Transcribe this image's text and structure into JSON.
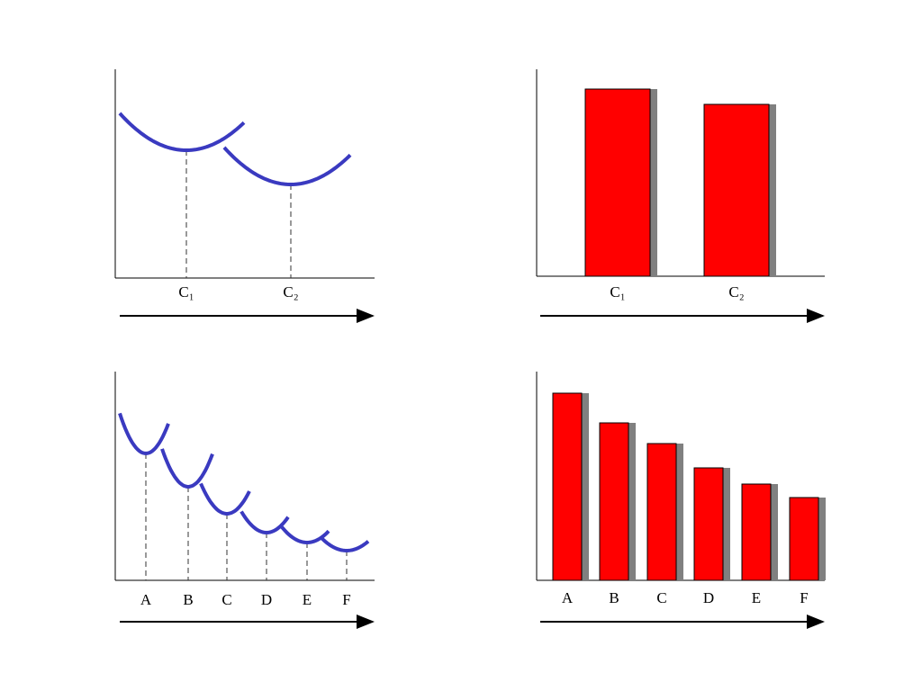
{
  "chart_data": [
    {
      "type": "curves",
      "categories": [
        "C₁",
        "C₂"
      ],
      "values": [
        142,
        104
      ],
      "ylim": [
        0,
        232
      ],
      "color": "#3a3ac0"
    },
    {
      "type": "bar",
      "categories": [
        "C₁",
        "C₂"
      ],
      "values": [
        208,
        191
      ],
      "ylim": [
        0,
        230
      ],
      "color": "#ff0000"
    },
    {
      "type": "curves",
      "categories": [
        "A",
        "B",
        "C",
        "D",
        "E",
        "F"
      ],
      "values": [
        141,
        104,
        74,
        53,
        42,
        33
      ],
      "ylim": [
        0,
        232
      ],
      "color": "#3a3ac0"
    },
    {
      "type": "bar",
      "categories": [
        "A",
        "B",
        "C",
        "D",
        "E",
        "F"
      ],
      "values": [
        208,
        175,
        152,
        125,
        107,
        92
      ],
      "ylim": [
        0,
        232
      ],
      "color": "#ff0000"
    }
  ]
}
